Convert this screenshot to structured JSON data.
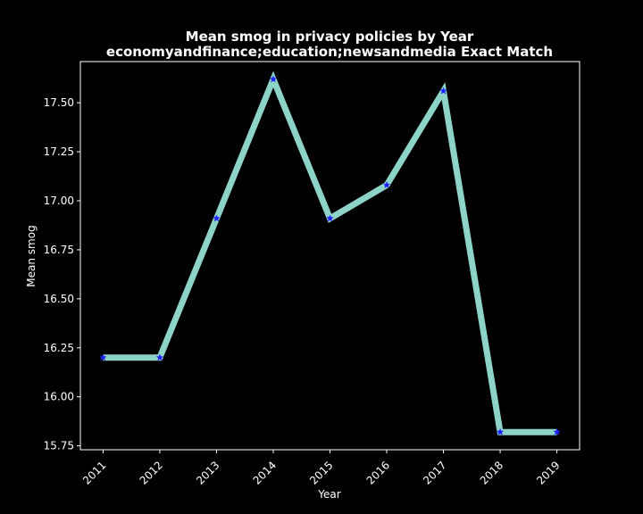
{
  "chart_data": {
    "type": "line",
    "title": "Mean smog in privacy policies by Year",
    "subtitle": "economyandfinance;education;newsandmedia Exact Match",
    "xlabel": "Year",
    "ylabel": "Mean smog",
    "x": [
      2011,
      2012,
      2013,
      2014,
      2015,
      2016,
      2017,
      2018,
      2019
    ],
    "x_tick_labels": [
      "2011",
      "2012",
      "2013",
      "2014",
      "2015",
      "2016",
      "2017",
      "2018",
      "2019"
    ],
    "y_ticks": [
      15.75,
      16.0,
      16.25,
      16.5,
      16.75,
      17.0,
      17.25,
      17.5
    ],
    "y_tick_labels": [
      "15.75",
      "16.00",
      "16.25",
      "16.50",
      "16.75",
      "17.00",
      "17.25",
      "17.50"
    ],
    "ylim": [
      15.73,
      17.71
    ],
    "xlim": [
      2010.6,
      2019.4
    ],
    "grid": false,
    "series": [
      {
        "values": [
          16.2,
          16.2,
          16.91,
          17.62,
          16.91,
          17.08,
          17.56,
          15.82,
          15.82
        ],
        "line_color": "#8dd3c7",
        "marker_color": "#1f1fff",
        "marker": "star"
      }
    ],
    "colors": {
      "background": "#000000",
      "axes": "#ffffff",
      "text": "#ffffff"
    }
  }
}
